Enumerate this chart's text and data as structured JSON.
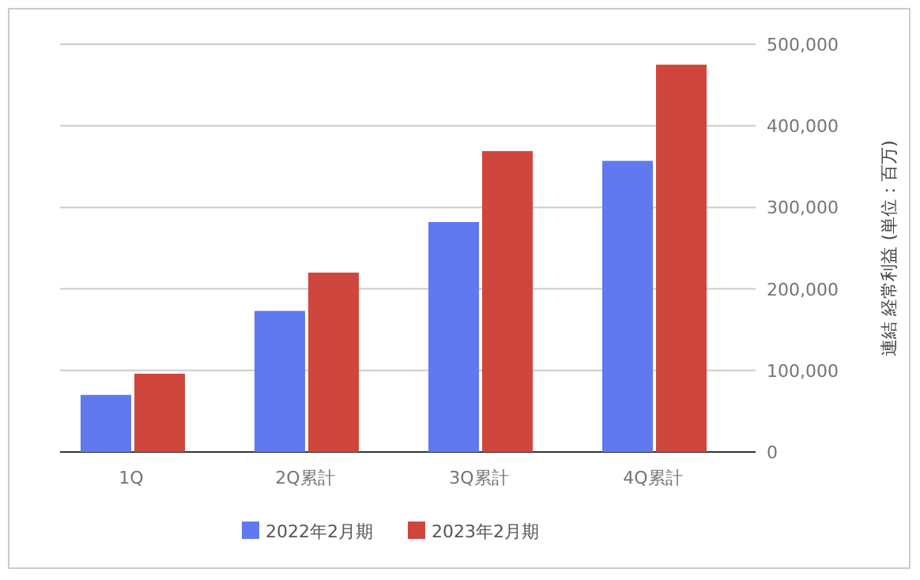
{
  "chart_data": {
    "type": "bar",
    "y2label": "連結 経常利益 (単位：百万)",
    "categories": [
      "1Q",
      "2Q累計",
      "3Q累計",
      "4Q累計"
    ],
    "series": [
      {
        "name": "2022年2月期",
        "color": "#6079f0",
        "values": [
          70000,
          173000,
          282000,
          357000
        ],
        "axis": "y2"
      },
      {
        "name": "2023年2月期",
        "color": "#cf463c",
        "values": [
          96000,
          220000,
          369000,
          475000
        ],
        "axis": "y2"
      }
    ],
    "y2lim": [
      0,
      500000
    ],
    "y2ticks": [
      {
        "value": 0,
        "label": "0"
      },
      {
        "value": 100000,
        "label": "100,000"
      },
      {
        "value": 200000,
        "label": "200,000"
      },
      {
        "value": 300000,
        "label": "300,000"
      },
      {
        "value": 400000,
        "label": "400,000"
      },
      {
        "value": 500000,
        "label": "500,000"
      }
    ],
    "grid": "y",
    "legend": "bottom"
  }
}
